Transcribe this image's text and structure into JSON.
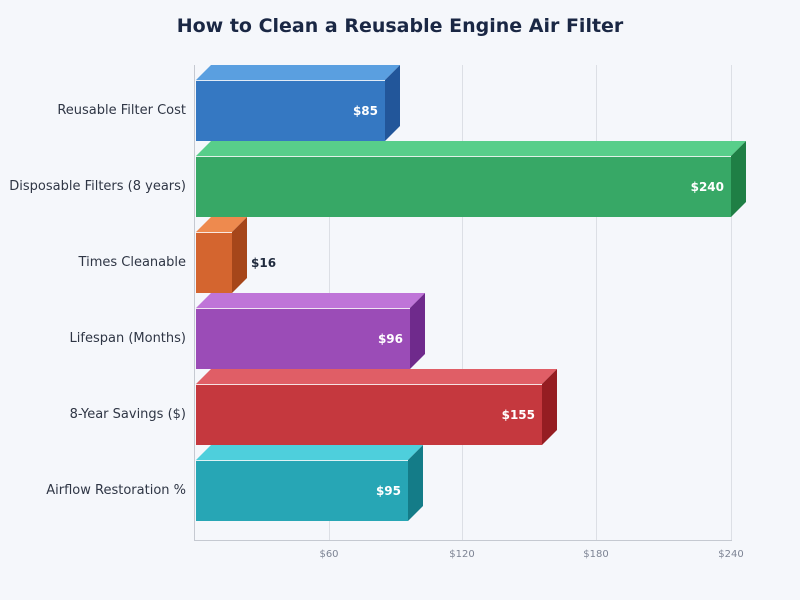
{
  "chart_data": {
    "type": "bar",
    "orientation": "horizontal",
    "style": "3d",
    "title": "How to Clean a Reusable Engine Air Filter",
    "xlabel": "",
    "ylabel": "",
    "categories": [
      "Reusable Filter Cost",
      "Disposable Filters (8 years)",
      "Times Cleanable",
      "Lifespan (Months)",
      "8-Year Savings ($)",
      "Airflow Restoration %"
    ],
    "values": [
      85,
      240,
      16,
      96,
      155,
      95
    ],
    "value_labels": [
      "$85",
      "$240",
      "$16",
      "$96",
      "$155",
      "$95"
    ],
    "colors": [
      "#3578c2",
      "#37a866",
      "#d4652f",
      "#9b4cb7",
      "#c5383e",
      "#27a6b5"
    ],
    "xlim": [
      0,
      240
    ],
    "x_ticks": [
      60,
      120,
      180,
      240
    ],
    "x_tick_labels": [
      "$60",
      "$120",
      "$180",
      "$240"
    ],
    "grid": true,
    "legend": null
  },
  "title": "How to Clean a Reusable Engine Air Filter",
  "axis": {
    "ticks": [
      "$60",
      "$120",
      "$180",
      "$240"
    ]
  },
  "bars": [
    {
      "label": "Reusable Filter Cost",
      "value_label": "$85",
      "value": 85,
      "front": "#3578c2",
      "top": "#5a9fe0",
      "side": "#22569a"
    },
    {
      "label": "Disposable Filters (8 years)",
      "value_label": "$240",
      "value": 240,
      "front": "#37a866",
      "top": "#58ce8a",
      "side": "#1f7f45"
    },
    {
      "label": "Times Cleanable",
      "value_label": "$16",
      "value": 16,
      "front": "#d4652f",
      "top": "#ee8a4e",
      "side": "#a6461a"
    },
    {
      "label": "Lifespan (Months)",
      "value_label": "$96",
      "value": 96,
      "front": "#9b4cb7",
      "top": "#bf75d8",
      "side": "#6f2a8c"
    },
    {
      "label": "8-Year Savings ($)",
      "value_label": "$155",
      "value": 155,
      "front": "#c5383e",
      "top": "#e05e66",
      "side": "#951d22"
    },
    {
      "label": "Airflow Restoration %",
      "value_label": "$95",
      "value": 95,
      "front": "#27a6b5",
      "top": "#4ecfdc",
      "side": "#147c88"
    }
  ]
}
